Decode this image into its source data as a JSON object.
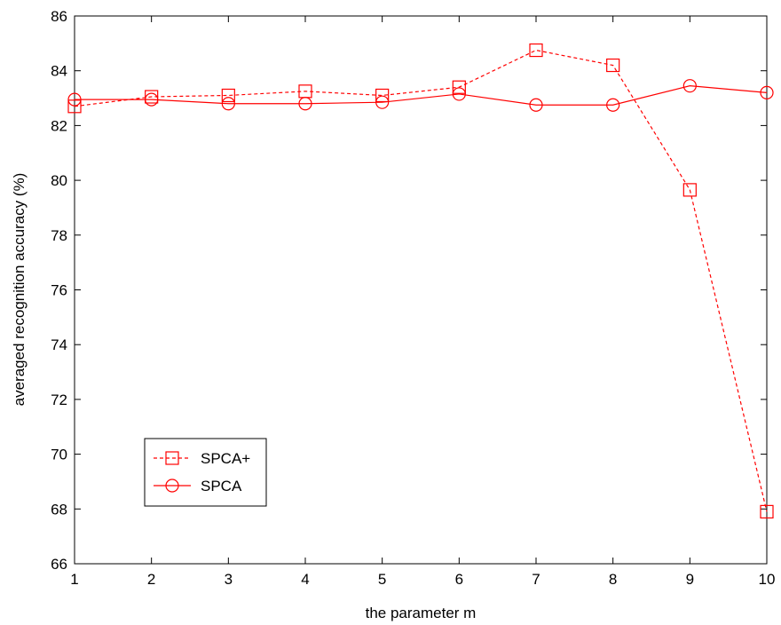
{
  "chart_data": {
    "type": "line",
    "xlabel": "the parameter m",
    "ylabel": "averaged recognition accuracy (%)",
    "xlim": [
      1,
      10
    ],
    "ylim": [
      66,
      86
    ],
    "xticks": [
      1,
      2,
      3,
      4,
      5,
      6,
      7,
      8,
      9,
      10
    ],
    "yticks": [
      66,
      68,
      70,
      72,
      74,
      76,
      78,
      80,
      82,
      84,
      86
    ],
    "grid": false,
    "legend_position": "lower-left",
    "x": [
      1,
      2,
      3,
      4,
      5,
      6,
      7,
      8,
      9,
      10
    ],
    "series": [
      {
        "name": "SPCA+",
        "marker": "square",
        "line_style": "dashed",
        "color": "#ff0000",
        "values": [
          82.7,
          83.05,
          83.1,
          83.25,
          83.1,
          83.4,
          84.75,
          84.2,
          79.65,
          67.9
        ]
      },
      {
        "name": "SPCA",
        "marker": "circle",
        "line_style": "solid",
        "color": "#ff0000",
        "values": [
          82.95,
          82.95,
          82.8,
          82.8,
          82.85,
          83.15,
          82.75,
          82.75,
          83.45,
          83.2
        ]
      }
    ]
  }
}
